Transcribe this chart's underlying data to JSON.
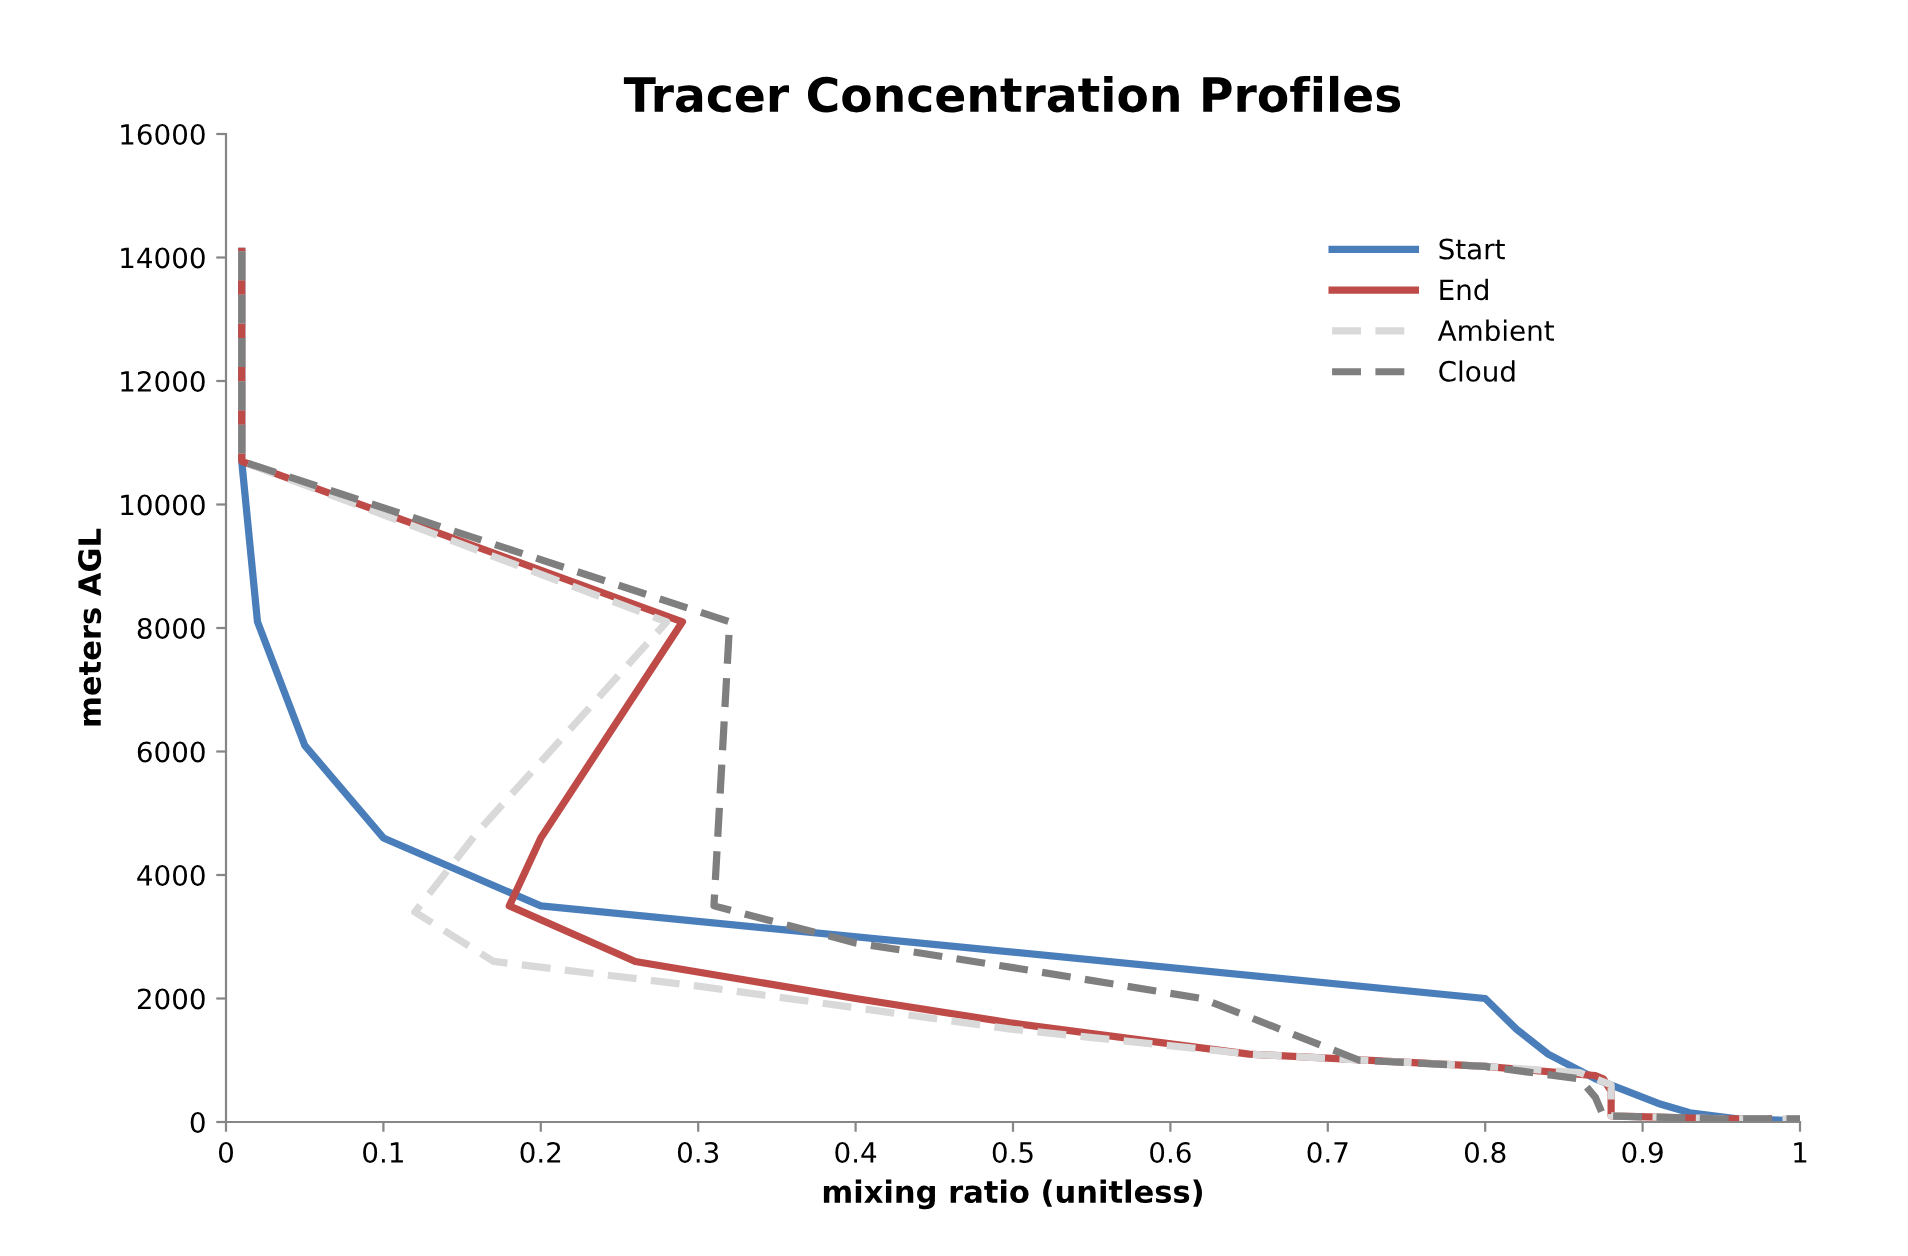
{
  "chart_data": {
    "type": "line",
    "title": "Tracer Concentration Profiles",
    "xlabel": "mixing ratio (unitless)",
    "ylabel": "meters AGL",
    "xlim": [
      0,
      1
    ],
    "xticks": [
      0,
      0.1,
      0.2,
      0.3,
      0.4,
      0.5,
      0.6,
      0.7,
      0.8,
      0.9,
      1
    ],
    "ylim": [
      0,
      16000
    ],
    "yticks": [
      0,
      2000,
      4000,
      6000,
      8000,
      10000,
      12000,
      14000,
      16000
    ],
    "grid": false,
    "legend": "top right",
    "marker": "none",
    "series": [
      {
        "name": "Start",
        "color": "#4a7ebb",
        "line_style": "solid",
        "x": [
          0.01,
          0.01,
          0.02,
          0.05,
          0.1,
          0.2,
          0.8,
          0.82,
          0.84,
          0.87,
          0.89,
          0.91,
          0.93,
          0.96,
          1.0
        ],
        "values": [
          14100,
          10700,
          8100,
          6100,
          4600,
          3500,
          2000,
          1500,
          1100,
          700,
          500,
          300,
          150,
          50,
          20
        ]
      },
      {
        "name": "End",
        "color": "#be4b48",
        "line_style": "solid",
        "x": [
          0.01,
          0.01,
          0.29,
          0.2,
          0.18,
          0.26,
          0.4,
          0.5,
          0.65,
          0.8,
          0.87,
          0.875,
          0.88,
          0.88,
          0.95,
          0.98
        ],
        "values": [
          14100,
          10700,
          8100,
          4600,
          3500,
          2600,
          2000,
          1600,
          1100,
          900,
          750,
          700,
          500,
          100,
          50,
          50
        ]
      },
      {
        "name": "Ambient",
        "color": "#d9d9d9",
        "line_style": "dashed",
        "x": [
          0.01,
          0.01,
          0.28,
          0.16,
          0.12,
          0.17,
          0.3,
          0.5,
          0.65,
          0.8,
          0.86,
          0.88,
          0.88,
          0.95,
          1.0
        ],
        "values": [
          14100,
          10700,
          8100,
          4700,
          3400,
          2600,
          2200,
          1500,
          1100,
          900,
          800,
          600,
          100,
          50,
          50
        ]
      },
      {
        "name": "Cloud",
        "color": "#7f7f7f",
        "line_style": "dashed",
        "x": [
          0.01,
          0.01,
          0.32,
          0.31,
          0.4,
          0.5,
          0.62,
          0.7,
          0.72,
          0.8,
          0.86,
          0.87,
          0.875,
          0.95,
          1.0
        ],
        "values": [
          14100,
          10700,
          8100,
          3500,
          2900,
          2500,
          2000,
          1200,
          1000,
          900,
          700,
          400,
          100,
          50,
          50
        ]
      }
    ]
  }
}
